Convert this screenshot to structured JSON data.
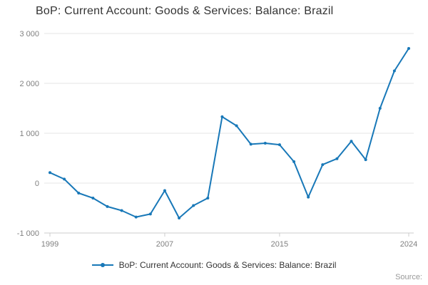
{
  "title": "BoP: Current Account: Goods & Services: Balance: Brazil",
  "legend": {
    "label": "BoP: Current Account: Goods & Services: Balance: Brazil"
  },
  "source_label": "Source:",
  "colors": {
    "line": "#1878b8",
    "grid": "#e6e6e6",
    "axis_line": "#cccccc",
    "axis_text": "#808080",
    "title_text": "#333333",
    "legend_text": "#333333",
    "source_text": "#999999"
  },
  "chart_data": {
    "type": "line",
    "title": "BoP: Current Account: Goods & Services: Balance: Brazil",
    "x": [
      1999,
      2000,
      2001,
      2002,
      2003,
      2004,
      2005,
      2006,
      2007,
      2008,
      2009,
      2010,
      2011,
      2012,
      2013,
      2014,
      2015,
      2016,
      2017,
      2018,
      2019,
      2020,
      2021,
      2022,
      2023,
      2024
    ],
    "values": [
      210,
      80,
      -200,
      -300,
      -470,
      -550,
      -680,
      -620,
      -150,
      -700,
      -450,
      -300,
      1330,
      1150,
      780,
      800,
      770,
      430,
      -280,
      370,
      490,
      840,
      470,
      1500,
      2250,
      2700
    ],
    "x_ticks": [
      1999,
      2007,
      2015,
      2024
    ],
    "y_ticks": [
      -1000,
      0,
      1000,
      2000,
      3000
    ],
    "y_tick_labels": [
      "-1 000",
      "0",
      "1 000",
      "2 000",
      "3 000"
    ],
    "xlim": [
      1999,
      2024
    ],
    "ylim": [
      -1000,
      3000
    ],
    "grid": true,
    "legend_position": "bottom",
    "marker": "circle"
  }
}
